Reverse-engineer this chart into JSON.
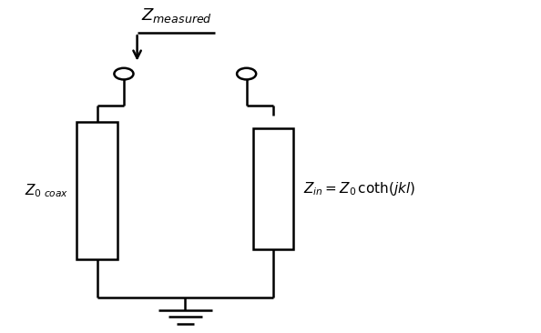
{
  "bg_color": "#ffffff",
  "line_color": "#000000",
  "line_width": 1.8,
  "fig_width": 5.94,
  "fig_height": 3.66,
  "dpi": 100,
  "z_measured_label": "$Z_{measured}$",
  "z0_coax_label": "$\\mathit{Z}_{0 \\ coax}$",
  "z_in_label": "$Z_{in} = Z_0\\,\\mathrm{coth}(jkl)$"
}
